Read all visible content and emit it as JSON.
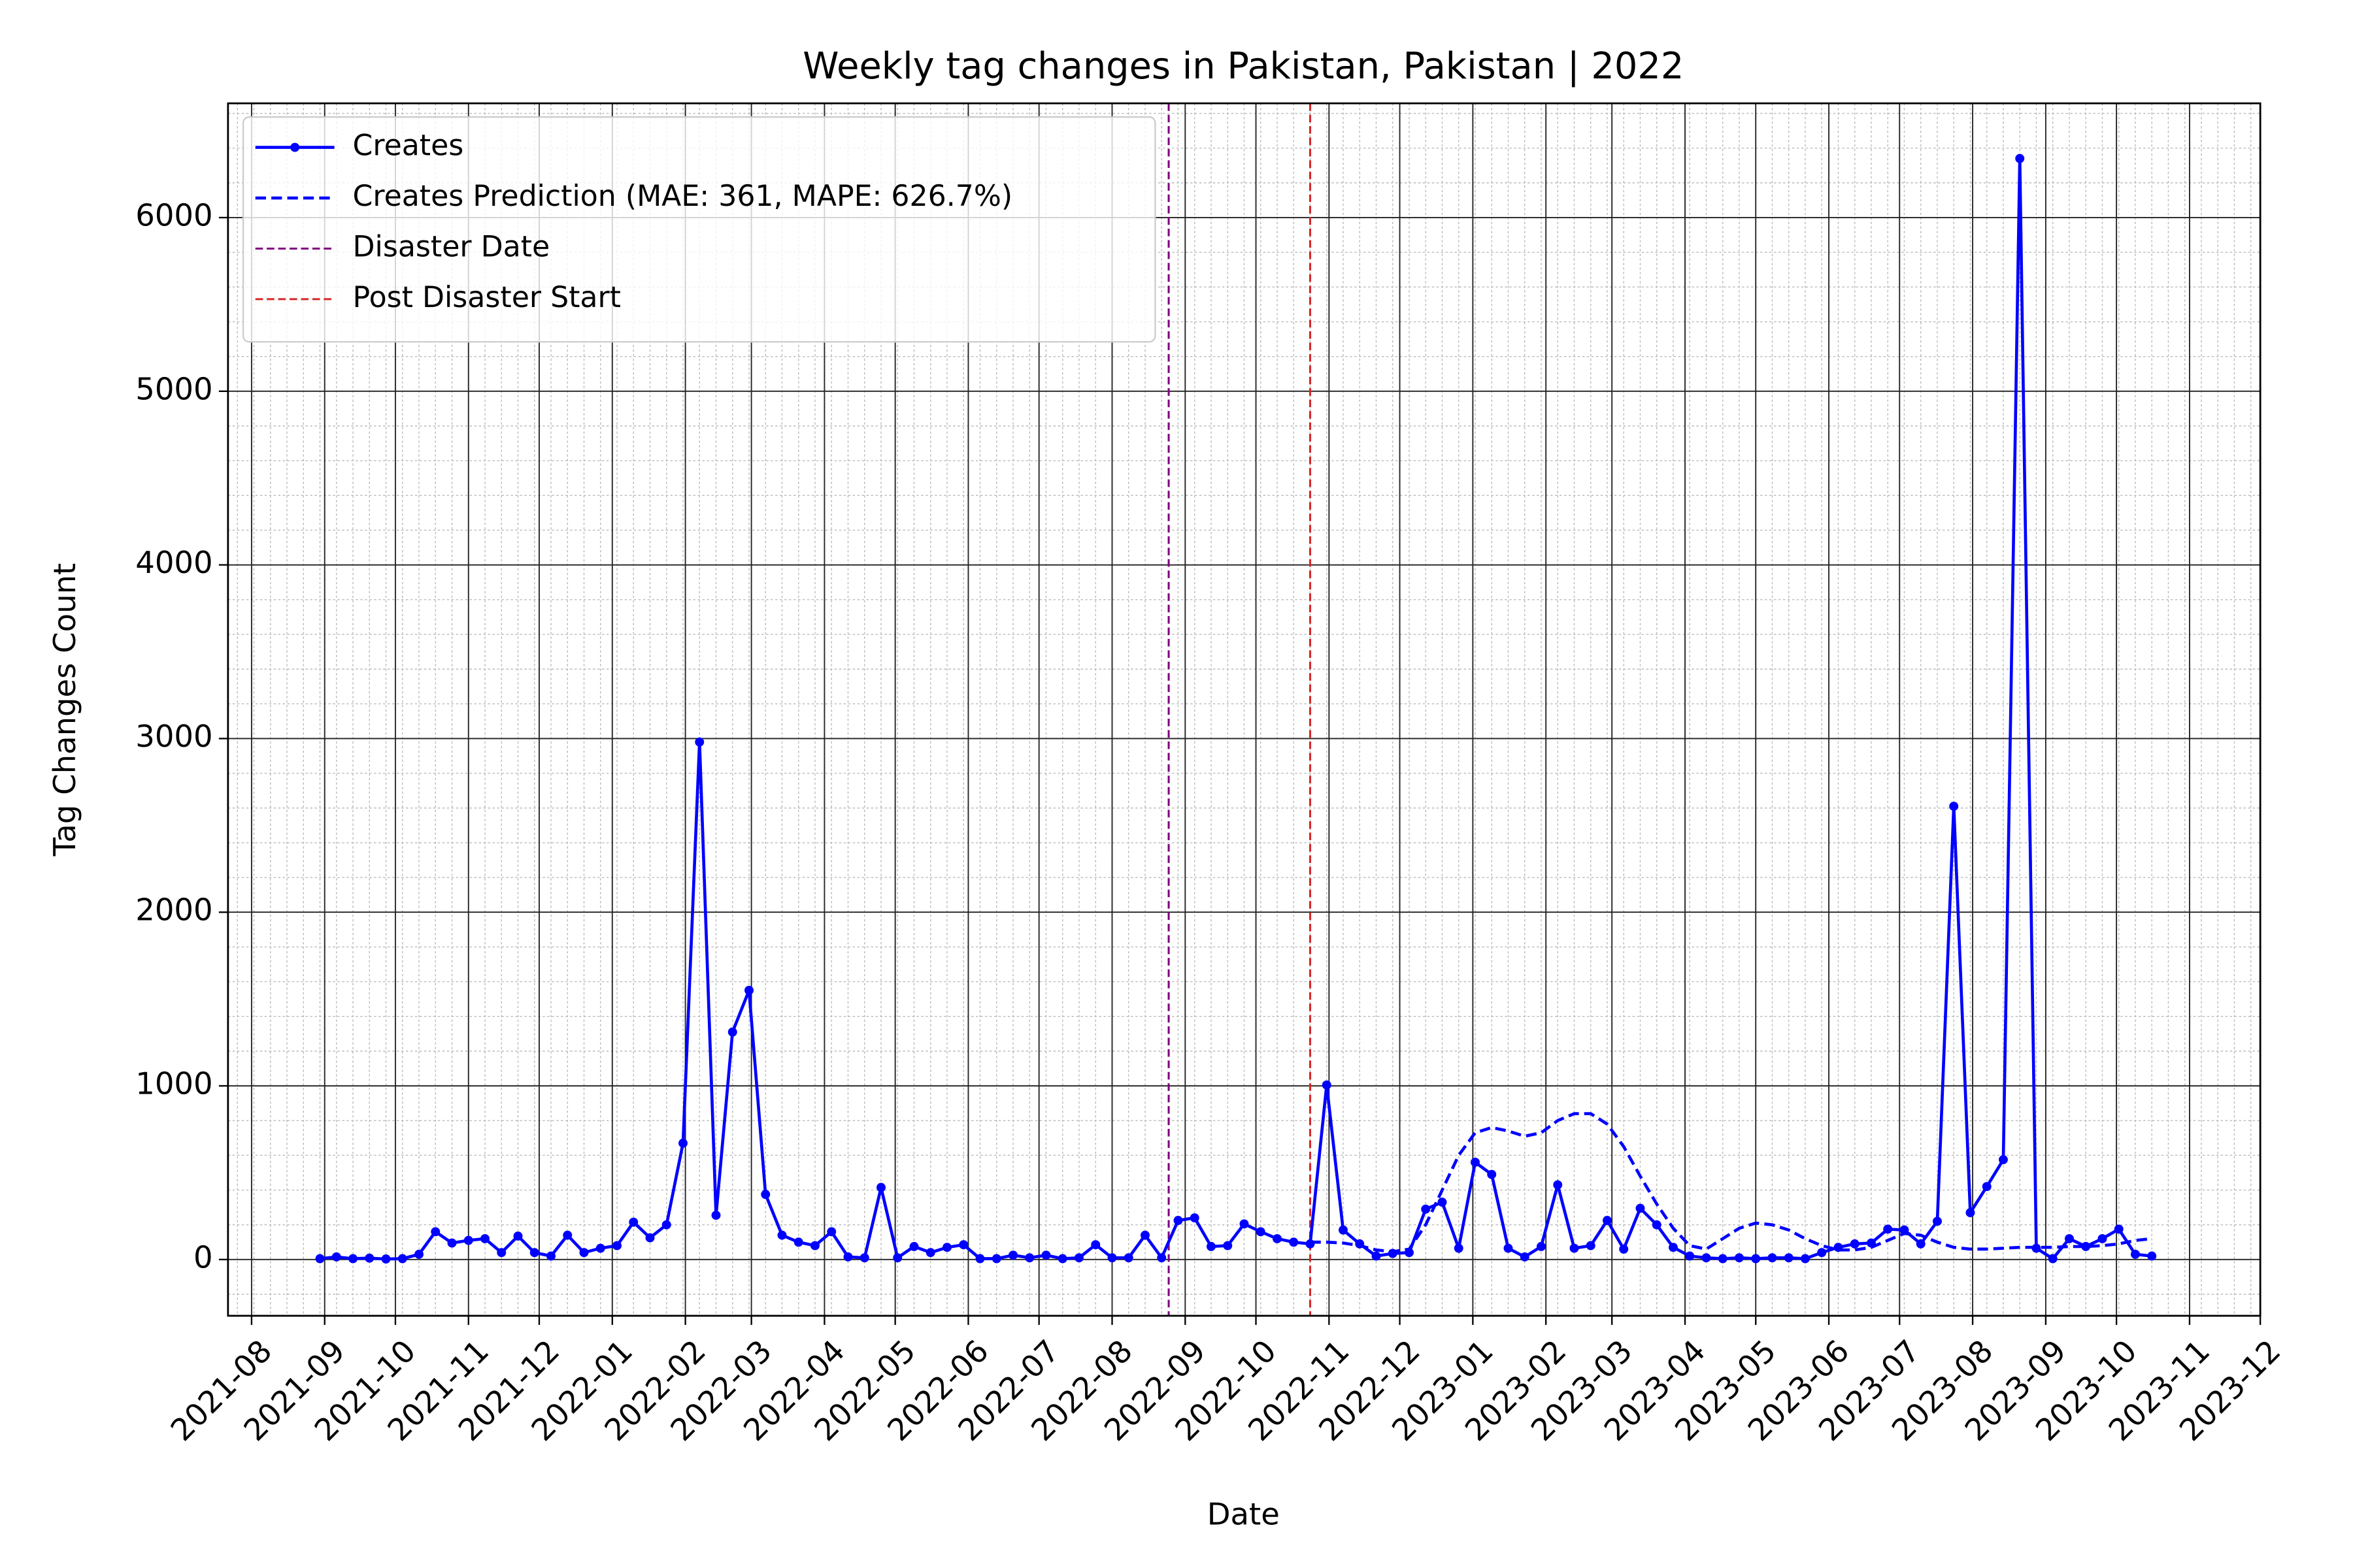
{
  "chart_data": {
    "type": "line",
    "title": "Weekly tag changes in Pakistan, Pakistan | 2022",
    "x_label": "Date",
    "y_label": "Tag Changes Count",
    "x": [
      "2021-08-30",
      "2021-09-06",
      "2021-09-13",
      "2021-09-20",
      "2021-09-27",
      "2021-10-04",
      "2021-10-11",
      "2021-10-18",
      "2021-10-25",
      "2021-11-01",
      "2021-11-08",
      "2021-11-15",
      "2021-11-22",
      "2021-11-29",
      "2021-12-06",
      "2021-12-13",
      "2021-12-20",
      "2021-12-27",
      "2022-01-03",
      "2022-01-10",
      "2022-01-17",
      "2022-01-24",
      "2022-01-31",
      "2022-02-07",
      "2022-02-14",
      "2022-02-21",
      "2022-02-28",
      "2022-03-07",
      "2022-03-14",
      "2022-03-21",
      "2022-03-28",
      "2022-04-04",
      "2022-04-11",
      "2022-04-18",
      "2022-04-25",
      "2022-05-02",
      "2022-05-09",
      "2022-05-16",
      "2022-05-23",
      "2022-05-30",
      "2022-06-06",
      "2022-06-13",
      "2022-06-20",
      "2022-06-27",
      "2022-07-04",
      "2022-07-11",
      "2022-07-18",
      "2022-07-25",
      "2022-08-01",
      "2022-08-08",
      "2022-08-15",
      "2022-08-22",
      "2022-08-29",
      "2022-09-05",
      "2022-09-12",
      "2022-09-19",
      "2022-09-26",
      "2022-10-03",
      "2022-10-10",
      "2022-10-17",
      "2022-10-24",
      "2022-10-31",
      "2022-11-07",
      "2022-11-14",
      "2022-11-21",
      "2022-11-28",
      "2022-12-05",
      "2022-12-12",
      "2022-12-19",
      "2022-12-26",
      "2023-01-02",
      "2023-01-09",
      "2023-01-16",
      "2023-01-23",
      "2023-01-30",
      "2023-02-06",
      "2023-02-13",
      "2023-02-20",
      "2023-02-27",
      "2023-03-06",
      "2023-03-13",
      "2023-03-20",
      "2023-03-27",
      "2023-04-03",
      "2023-04-10",
      "2023-04-17",
      "2023-04-24",
      "2023-05-01",
      "2023-05-08",
      "2023-05-15",
      "2023-05-22",
      "2023-05-29",
      "2023-06-05",
      "2023-06-12",
      "2023-06-19",
      "2023-06-26",
      "2023-07-03",
      "2023-07-10",
      "2023-07-17",
      "2023-07-24",
      "2023-07-31",
      "2023-08-07",
      "2023-08-14",
      "2023-08-21",
      "2023-08-28",
      "2023-09-04",
      "2023-09-11",
      "2023-09-18",
      "2023-09-25",
      "2023-10-02",
      "2023-10-09",
      "2023-10-16"
    ],
    "series": [
      {
        "name": "Creates",
        "color": "#0000ff",
        "style": "solid",
        "markers": true,
        "values": [
          5,
          15,
          5,
          8,
          3,
          5,
          30,
          160,
          95,
          110,
          120,
          40,
          135,
          40,
          20,
          140,
          40,
          65,
          80,
          215,
          125,
          200,
          670,
          2980,
          255,
          1310,
          1550,
          375,
          140,
          100,
          80,
          160,
          15,
          10,
          415,
          10,
          75,
          40,
          70,
          85,
          5,
          5,
          25,
          10,
          25,
          5,
          10,
          85,
          10,
          10,
          140,
          10,
          225,
          240,
          75,
          80,
          205,
          160,
          120,
          100,
          90,
          1005,
          170,
          90,
          20,
          35,
          40,
          290,
          330,
          65,
          560,
          490,
          65,
          15,
          75,
          430,
          65,
          80,
          225,
          60,
          295,
          200,
          70,
          20,
          10,
          5,
          10,
          5,
          10,
          10,
          5,
          40,
          70,
          90,
          95,
          175,
          170,
          90,
          220,
          2610,
          270,
          420,
          575,
          6340,
          65,
          5,
          120,
          75,
          120,
          175,
          30,
          20
        ]
      },
      {
        "name": "Creates Prediction (MAE: 361, MAPE: 626.7%)",
        "color": "#0000ff",
        "style": "dashed",
        "markers": false,
        "values": [
          null,
          null,
          null,
          null,
          null,
          null,
          null,
          null,
          null,
          null,
          null,
          null,
          null,
          null,
          null,
          null,
          null,
          null,
          null,
          null,
          null,
          null,
          null,
          null,
          null,
          null,
          null,
          null,
          null,
          null,
          null,
          null,
          null,
          null,
          null,
          null,
          null,
          null,
          null,
          null,
          null,
          null,
          null,
          null,
          null,
          null,
          null,
          null,
          null,
          null,
          null,
          null,
          null,
          null,
          null,
          null,
          null,
          null,
          null,
          null,
          100,
          100,
          95,
          80,
          55,
          45,
          60,
          200,
          400,
          600,
          730,
          760,
          740,
          710,
          730,
          800,
          840,
          840,
          780,
          650,
          480,
          320,
          180,
          80,
          60,
          120,
          180,
          210,
          200,
          170,
          120,
          80,
          55,
          55,
          70,
          110,
          150,
          140,
          100,
          70,
          60,
          60,
          65,
          70,
          70,
          70,
          75,
          75,
          80,
          90,
          110,
          120
        ]
      }
    ],
    "vlines": [
      {
        "name": "Disaster Date",
        "x": "2022-08-25",
        "color": "#800080"
      },
      {
        "name": "Post Disaster Start",
        "x": "2022-10-24",
        "color": "#d62728"
      }
    ],
    "xlim": [
      "2021-07-22",
      "2023-12-01"
    ],
    "xticks": [
      "2021-08",
      "2021-09",
      "2021-10",
      "2021-11",
      "2021-12",
      "2022-01",
      "2022-02",
      "2022-03",
      "2022-04",
      "2022-05",
      "2022-06",
      "2022-07",
      "2022-08",
      "2022-09",
      "2022-10",
      "2022-11",
      "2022-12",
      "2023-01",
      "2023-02",
      "2023-03",
      "2023-04",
      "2023-05",
      "2023-06",
      "2023-07",
      "2023-08",
      "2023-09",
      "2023-10",
      "2023-11",
      "2023-12"
    ],
    "ylim": [
      -324,
      6658
    ],
    "yticks": [
      0,
      1000,
      2000,
      3000,
      4000,
      5000,
      6000
    ],
    "grid": true,
    "minor_grid": true,
    "legend": "upper left"
  }
}
